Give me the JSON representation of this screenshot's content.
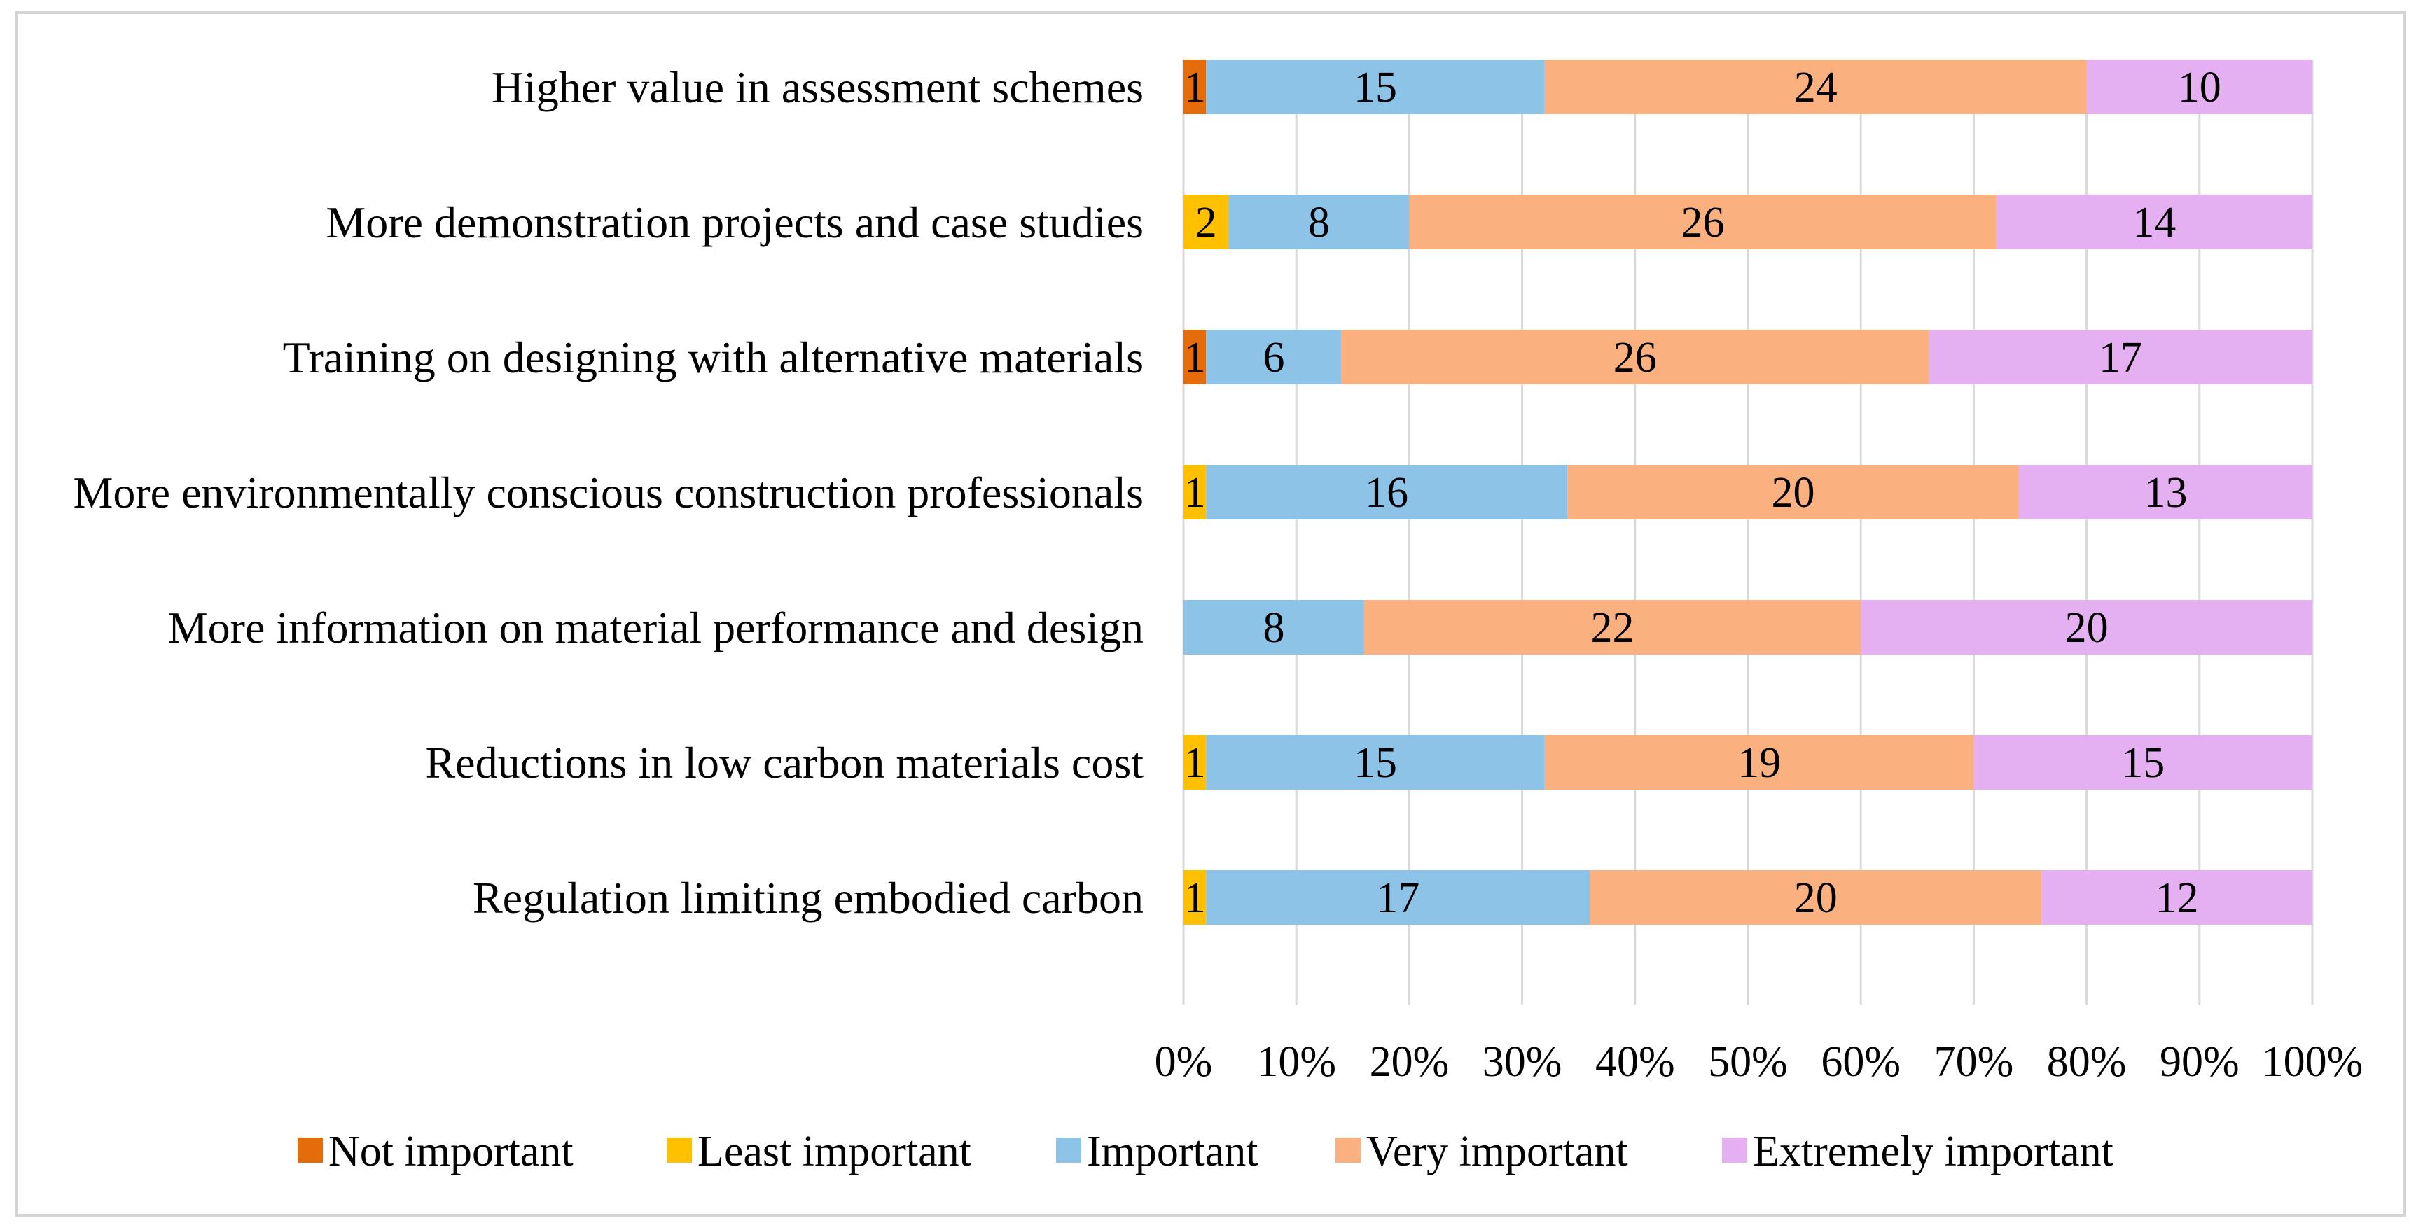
{
  "chart_data": {
    "type": "bar",
    "orientation": "horizontal",
    "stacked": "percent",
    "categories": [
      "Higher value in assessment schemes",
      "More demonstration projects and case studies",
      "Training on designing with alternative materials",
      "More environmentally conscious construction professionals",
      "More information on material performance and design",
      "Reductions in low carbon materials cost",
      "Regulation limiting embodied carbon"
    ],
    "series": [
      {
        "name": "Not important",
        "color": "#E46C0A",
        "values": [
          1,
          0,
          1,
          0,
          0,
          0,
          0
        ]
      },
      {
        "name": "Least important",
        "color": "#FFC000",
        "values": [
          0,
          2,
          0,
          1,
          0,
          1,
          1
        ]
      },
      {
        "name": "Important",
        "color": "#8EC3E8",
        "values": [
          15,
          8,
          6,
          16,
          8,
          15,
          17
        ]
      },
      {
        "name": "Very important",
        "color": "#FBB07F",
        "values": [
          24,
          26,
          26,
          20,
          22,
          19,
          20
        ]
      },
      {
        "name": "Extremely important",
        "color": "#E5B0F2",
        "values": [
          10,
          14,
          17,
          13,
          20,
          15,
          12
        ]
      }
    ],
    "x_ticks": [
      "0%",
      "10%",
      "20%",
      "30%",
      "40%",
      "50%",
      "60%",
      "70%",
      "80%",
      "90%",
      "100%"
    ],
    "xlim": [
      0,
      100
    ],
    "grid": "vertical",
    "legend": "bottom"
  }
}
